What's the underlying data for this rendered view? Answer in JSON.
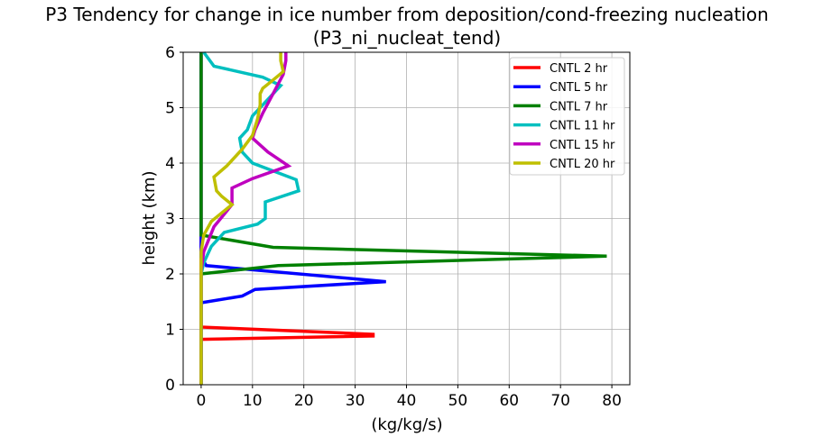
{
  "chart_data": {
    "type": "line",
    "title": "P3 Tendency for change in ice number from deposition/cond-freezing nucleation",
    "subtitle": "(P3_ni_nucleat_tend)",
    "xlabel": "(kg/kg/s)",
    "ylabel": "height (km)",
    "xlim": [
      -3.5,
      83.5
    ],
    "ylim": [
      0,
      6
    ],
    "xticks": [
      0,
      10,
      20,
      30,
      40,
      50,
      60,
      70,
      80
    ],
    "yticks": [
      0,
      1,
      2,
      3,
      4,
      5,
      6
    ],
    "grid": true,
    "legend_position": "top-right",
    "series": [
      {
        "name": "CNTL 2 hr",
        "color": "#ff0000",
        "points": [
          [
            0,
            0
          ],
          [
            0,
            0.82
          ],
          [
            33.5,
            0.88
          ],
          [
            33.5,
            0.91
          ],
          [
            0,
            1.04
          ],
          [
            0,
            6
          ]
        ]
      },
      {
        "name": "CNTL 5 hr",
        "color": "#0000ff",
        "points": [
          [
            0,
            0
          ],
          [
            0,
            1.48
          ],
          [
            8,
            1.6
          ],
          [
            10.5,
            1.72
          ],
          [
            36,
            1.86
          ],
          [
            1,
            2.15
          ],
          [
            0,
            2.3
          ],
          [
            0,
            6
          ]
        ]
      },
      {
        "name": "CNTL 7 hr",
        "color": "#008000",
        "points": [
          [
            0,
            0
          ],
          [
            0,
            2.0
          ],
          [
            15,
            2.15
          ],
          [
            79,
            2.32
          ],
          [
            14,
            2.48
          ],
          [
            0,
            2.7
          ],
          [
            0,
            6
          ]
        ]
      },
      {
        "name": "CNTL 11 hr",
        "color": "#00bfbf",
        "points": [
          [
            0,
            0
          ],
          [
            0,
            2.0
          ],
          [
            0.5,
            2.2
          ],
          [
            2,
            2.5
          ],
          [
            4.5,
            2.75
          ],
          [
            11,
            2.9
          ],
          [
            12.5,
            3.0
          ],
          [
            12.5,
            3.3
          ],
          [
            19,
            3.5
          ],
          [
            18.5,
            3.7
          ],
          [
            10,
            4.0
          ],
          [
            8,
            4.2
          ],
          [
            7.5,
            4.45
          ],
          [
            9,
            4.6
          ],
          [
            10,
            4.85
          ],
          [
            12,
            5.05
          ],
          [
            15.5,
            5.4
          ],
          [
            12,
            5.55
          ],
          [
            2.5,
            5.75
          ],
          [
            0.5,
            6.0
          ]
        ]
      },
      {
        "name": "CNTL 15 hr",
        "color": "#bf00bf",
        "points": [
          [
            0,
            0
          ],
          [
            0,
            2.05
          ],
          [
            0.5,
            2.4
          ],
          [
            2.5,
            2.85
          ],
          [
            6,
            3.25
          ],
          [
            6,
            3.55
          ],
          [
            10,
            3.72
          ],
          [
            17,
            3.95
          ],
          [
            13,
            4.2
          ],
          [
            10,
            4.45
          ],
          [
            10.5,
            4.6
          ],
          [
            12,
            4.9
          ],
          [
            14,
            5.25
          ],
          [
            16,
            5.6
          ],
          [
            16.5,
            5.85
          ],
          [
            16.5,
            6.0
          ]
        ]
      },
      {
        "name": "CNTL 20 hr",
        "color": "#bfbf00",
        "points": [
          [
            0,
            0
          ],
          [
            0,
            2.4
          ],
          [
            0.5,
            2.7
          ],
          [
            2,
            2.95
          ],
          [
            4,
            3.1
          ],
          [
            6,
            3.25
          ],
          [
            4,
            3.4
          ],
          [
            3,
            3.5
          ],
          [
            2.5,
            3.75
          ],
          [
            5,
            3.95
          ],
          [
            8,
            4.25
          ],
          [
            10,
            4.5
          ],
          [
            11,
            4.8
          ],
          [
            11.5,
            5.05
          ],
          [
            11.5,
            5.25
          ],
          [
            12,
            5.35
          ],
          [
            14,
            5.5
          ],
          [
            16,
            5.65
          ],
          [
            15.5,
            5.85
          ],
          [
            15.5,
            6.0
          ]
        ]
      }
    ]
  }
}
